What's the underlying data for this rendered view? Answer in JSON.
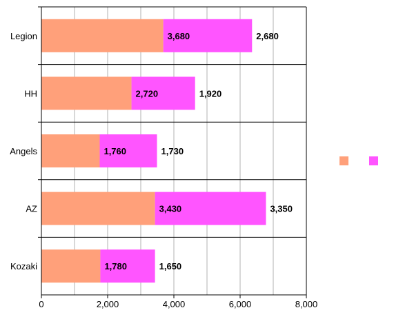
{
  "chart_data": {
    "type": "bar",
    "orientation": "horizontal",
    "stacked": true,
    "title": "",
    "xlabel": "",
    "ylabel": "",
    "categories": [
      "Legion",
      "HH",
      "Angels",
      "AZ",
      "Kozaki"
    ],
    "series": [
      {
        "values": [
          3680,
          2720,
          1760,
          3430,
          1780
        ],
        "color": "#FFA07A"
      },
      {
        "values": [
          2680,
          1920,
          1730,
          3350,
          1650
        ],
        "color": "#FF55FF"
      }
    ],
    "data_labels": [
      [
        "3,680",
        "2,720",
        "1,760",
        "3,430",
        "1,780"
      ],
      [
        "2,680",
        "1,920",
        "1,730",
        "3,350",
        "1,650"
      ]
    ],
    "xlim": [
      0,
      8000
    ],
    "xticks": [
      0,
      2000,
      4000,
      6000,
      8000
    ],
    "xtick_labels": [
      "0",
      "2,000",
      "4,000",
      "6,000",
      "8,000"
    ],
    "grid": "vertical",
    "legend": {
      "position": "right",
      "entries": [
        "",
        ""
      ]
    }
  }
}
